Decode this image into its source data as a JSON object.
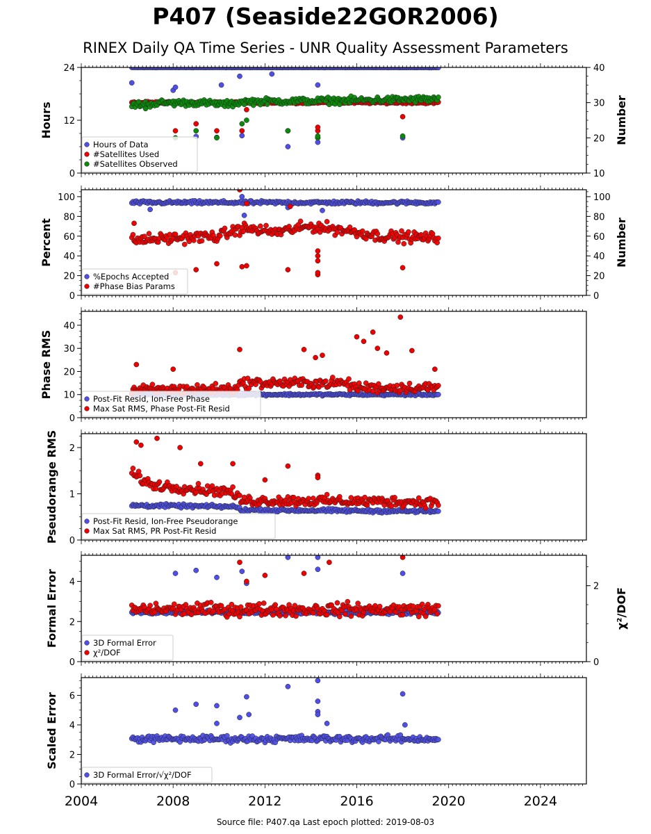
{
  "header": {
    "title": "P407 (Seaside22GOR2006)",
    "subtitle": "RINEX Daily QA Time Series - UNR Quality Assessment Parameters"
  },
  "footer": {
    "source": "Source file: P407.qa Last epoch plotted: 2019-08-03"
  },
  "colors": {
    "blue": "#4f4fe8",
    "red": "#ee0000",
    "green": "#0a8a0a",
    "outline": "#222222"
  },
  "chart_data": [
    {
      "type": "scatter",
      "ylabel": "Hours",
      "ylabel_right": "Number",
      "ylim": [
        0,
        24
      ],
      "yticks": [
        0,
        12,
        24
      ],
      "ylim_right": [
        10,
        40
      ],
      "yticks_right": [
        10,
        20,
        30,
        40
      ],
      "xlim": [
        2004,
        2026
      ],
      "legend_position": "lower-left",
      "series": [
        {
          "name": "Hours of Data",
          "color": "blue",
          "axis": "left",
          "base": 24,
          "noise": 0.05,
          "outliers": [
            [
              2006.2,
              20.5
            ],
            [
              2008.0,
              18.8
            ],
            [
              2008.1,
              19.5
            ],
            [
              2009.0,
              8.3
            ],
            [
              2009.9,
              8.1
            ],
            [
              2010.1,
              20
            ],
            [
              2011.0,
              8.5
            ],
            [
              2012.3,
              22.5
            ],
            [
              2013.0,
              6
            ],
            [
              2014.3,
              7
            ],
            [
              2014.3,
              8
            ],
            [
              2014.3,
              20
            ],
            [
              2018.0,
              8
            ],
            [
              2010.9,
              22
            ]
          ]
        },
        {
          "name": "#Satellites Used",
          "color": "red",
          "axis": "right",
          "base": 30,
          "noise": 0.3,
          "outliers": [
            [
              2008.1,
              22
            ],
            [
              2009.0,
              24
            ],
            [
              2009.9,
              22
            ],
            [
              2011.0,
              22
            ],
            [
              2011.2,
              28
            ],
            [
              2013.0,
              22
            ],
            [
              2014.3,
              22
            ],
            [
              2014.3,
              23
            ],
            [
              2018.0,
              26
            ]
          ]
        },
        {
          "name": "#Satellites Observed",
          "color": "green",
          "axis": "right",
          "base": 30,
          "noise": 1.0,
          "trend": [
            [
              2006.2,
              29.3
            ],
            [
              2007.5,
              29.9
            ],
            [
              2009.0,
              30
            ],
            [
              2010.5,
              29.5
            ],
            [
              2011.0,
              30.3
            ],
            [
              2014.0,
              30.5
            ],
            [
              2017.0,
              30.8
            ],
            [
              2019.6,
              31
            ]
          ],
          "outliers": [
            [
              2006.8,
              28.3
            ],
            [
              2008.1,
              20
            ],
            [
              2009.0,
              22
            ],
            [
              2009.9,
              20
            ],
            [
              2011.0,
              24
            ],
            [
              2011.2,
              25
            ],
            [
              2013.0,
              22
            ],
            [
              2014.3,
              20
            ],
            [
              2014.3,
              20.5
            ],
            [
              2018.0,
              20.5
            ]
          ]
        }
      ]
    },
    {
      "type": "scatter",
      "ylabel": "Percent",
      "ylabel_right": "Number",
      "ylim": [
        0,
        107
      ],
      "yticks": [
        0,
        20,
        40,
        60,
        80,
        100
      ],
      "ylim_right": [
        0,
        107
      ],
      "yticks_right": [
        0,
        20,
        40,
        60,
        80,
        100
      ],
      "xlim": [
        2004,
        2026
      ],
      "legend_position": "lower-left",
      "series": [
        {
          "name": "%Epochs Accepted",
          "color": "blue",
          "base": 94,
          "noise": 1.8,
          "outliers": [
            [
              2011.0,
              100
            ],
            [
              2011.1,
              81
            ],
            [
              2007.0,
              87
            ],
            [
              2013.0,
              89
            ],
            [
              2014.5,
              86
            ]
          ]
        },
        {
          "name": "#Phase Bias Params",
          "color": "red",
          "base": 60,
          "noise": 6,
          "trend": [
            [
              2006.2,
              56
            ],
            [
              2008,
              58
            ],
            [
              2010,
              60
            ],
            [
              2011.0,
              68
            ],
            [
              2012.5,
              64
            ],
            [
              2014.0,
              70
            ],
            [
              2015.5,
              66
            ],
            [
              2017.0,
              60
            ],
            [
              2019.6,
              58
            ]
          ],
          "outliers": [
            [
              2008.1,
              23
            ],
            [
              2009.0,
              26
            ],
            [
              2009.9,
              32
            ],
            [
              2011.0,
              29
            ],
            [
              2011.2,
              30
            ],
            [
              2010.9,
              107
            ],
            [
              2013.0,
              26
            ],
            [
              2014.3,
              21
            ],
            [
              2014.3,
              23
            ],
            [
              2014.3,
              35
            ],
            [
              2014.3,
              40
            ],
            [
              2014.3,
              45
            ],
            [
              2018.0,
              28
            ],
            [
              2006.3,
              73
            ],
            [
              2011.2,
              93
            ],
            [
              2013.1,
              90
            ]
          ]
        }
      ]
    },
    {
      "type": "scatter",
      "ylabel": "Phase RMS",
      "ylim": [
        0,
        46
      ],
      "yticks": [
        0,
        10,
        20,
        30,
        40
      ],
      "xlim": [
        2004,
        2026
      ],
      "legend_position": "lower-left",
      "series": [
        {
          "name": "Post-Fit Resid, Ion-Free Phase",
          "color": "blue",
          "base": 10,
          "noise": 0.5
        },
        {
          "name": "Max Sat RMS, Phase Post-Fit Resid",
          "color": "red",
          "base": 13,
          "noise": 2.4,
          "trend": [
            [
              2006.2,
              12
            ],
            [
              2010.7,
              12.5
            ],
            [
              2011.0,
              15
            ],
            [
              2015.5,
              15
            ],
            [
              2016.0,
              13
            ],
            [
              2019.6,
              13
            ]
          ],
          "outliers": [
            [
              2006.4,
              23
            ],
            [
              2008.0,
              21
            ],
            [
              2010.9,
              29.5
            ],
            [
              2013.7,
              29.5
            ],
            [
              2014.2,
              26
            ],
            [
              2014.5,
              27
            ],
            [
              2016.0,
              35
            ],
            [
              2016.3,
              33
            ],
            [
              2016.7,
              37
            ],
            [
              2016.9,
              30
            ],
            [
              2017.3,
              28
            ],
            [
              2017.9,
              43.5
            ],
            [
              2018.4,
              29
            ],
            [
              2019.4,
              21
            ]
          ]
        }
      ]
    },
    {
      "type": "scatter",
      "ylabel": "Pseudorange RMS",
      "ylim": [
        0,
        2.3
      ],
      "yticks": [
        0,
        1,
        2
      ],
      "xlim": [
        2004,
        2026
      ],
      "legend_position": "lower-left",
      "series": [
        {
          "name": "Post-Fit Resid, Ion-Free Pseudorange",
          "color": "blue",
          "base": 0.65,
          "noise": 0.04,
          "trend": [
            [
              2006.2,
              0.75
            ],
            [
              2010.7,
              0.72
            ],
            [
              2011.0,
              0.65
            ],
            [
              2019.6,
              0.62
            ]
          ]
        },
        {
          "name": "Max Sat RMS, PR Post-Fit Resid",
          "color": "red",
          "base": 1.0,
          "noise": 0.12,
          "trend": [
            [
              2006.2,
              1.45
            ],
            [
              2007.0,
              1.2
            ],
            [
              2008.0,
              1.15
            ],
            [
              2009.0,
              1.1
            ],
            [
              2010.5,
              1.05
            ],
            [
              2011.0,
              0.85
            ],
            [
              2014.0,
              0.85
            ],
            [
              2019.6,
              0.82
            ]
          ],
          "outliers": [
            [
              2006.4,
              2.12
            ],
            [
              2006.6,
              2.05
            ],
            [
              2007.3,
              2.2
            ],
            [
              2008.3,
              2.0
            ],
            [
              2009.2,
              1.65
            ],
            [
              2010.6,
              1.65
            ],
            [
              2012.0,
              1.3
            ],
            [
              2013.0,
              1.6
            ],
            [
              2014.3,
              1.4
            ],
            [
              2014.3,
              1.35
            ]
          ]
        }
      ]
    },
    {
      "type": "scatter",
      "ylabel": "Formal Error",
      "ylabel_right": "χ²/DOF",
      "ylim": [
        0,
        5.3
      ],
      "yticks": [
        0,
        2,
        4
      ],
      "ylim_right": [
        0,
        2.8
      ],
      "yticks_right": [
        0,
        2
      ],
      "xlim": [
        2004,
        2026
      ],
      "legend_position": "lower-left",
      "series": [
        {
          "name": "3D Formal Error",
          "color": "blue",
          "base": 2.45,
          "noise": 0.1,
          "outliers": [
            [
              2008.1,
              4.4
            ],
            [
              2009.0,
              4.55
            ],
            [
              2009.9,
              4.2
            ],
            [
              2011.0,
              4.5
            ],
            [
              2011.2,
              3.9
            ],
            [
              2013.0,
              5.2
            ],
            [
              2014.3,
              5.2
            ],
            [
              2014.3,
              4.6
            ],
            [
              2018.0,
              4.4
            ]
          ]
        },
        {
          "name": "χ²/DOF",
          "color": "red",
          "base": 2.6,
          "noise": 0.35,
          "outliers": [
            [
              2010.9,
              4.95
            ],
            [
              2013.7,
              4.4
            ],
            [
              2014.8,
              4.95
            ],
            [
              2018.0,
              5.2
            ],
            [
              2011.2,
              4.0
            ],
            [
              2012.0,
              4.3
            ]
          ]
        }
      ]
    },
    {
      "type": "scatter",
      "ylabel": "Scaled Error",
      "ylim": [
        0,
        7.2
      ],
      "yticks": [
        0,
        2,
        4,
        6
      ],
      "xlim": [
        2004,
        2026
      ],
      "xticks": [
        2004,
        2008,
        2012,
        2016,
        2020,
        2024
      ],
      "legend_position": "lower-left",
      "series": [
        {
          "name": "3D Formal Error/√χ²/DOF",
          "color": "blue",
          "base": 3.05,
          "noise": 0.25,
          "outliers": [
            [
              2008.1,
              5.0
            ],
            [
              2009.0,
              5.4
            ],
            [
              2009.9,
              5.3
            ],
            [
              2010.9,
              4.5
            ],
            [
              2011.2,
              5.9
            ],
            [
              2011.3,
              4.7
            ],
            [
              2013.0,
              6.6
            ],
            [
              2014.3,
              7.0
            ],
            [
              2014.3,
              5.6
            ],
            [
              2014.3,
              4.9
            ],
            [
              2014.3,
              4.7
            ],
            [
              2018.0,
              6.1
            ],
            [
              2018.1,
              4.0
            ],
            [
              2014.7,
              4.1
            ],
            [
              2009.9,
              4.1
            ]
          ]
        }
      ]
    }
  ]
}
